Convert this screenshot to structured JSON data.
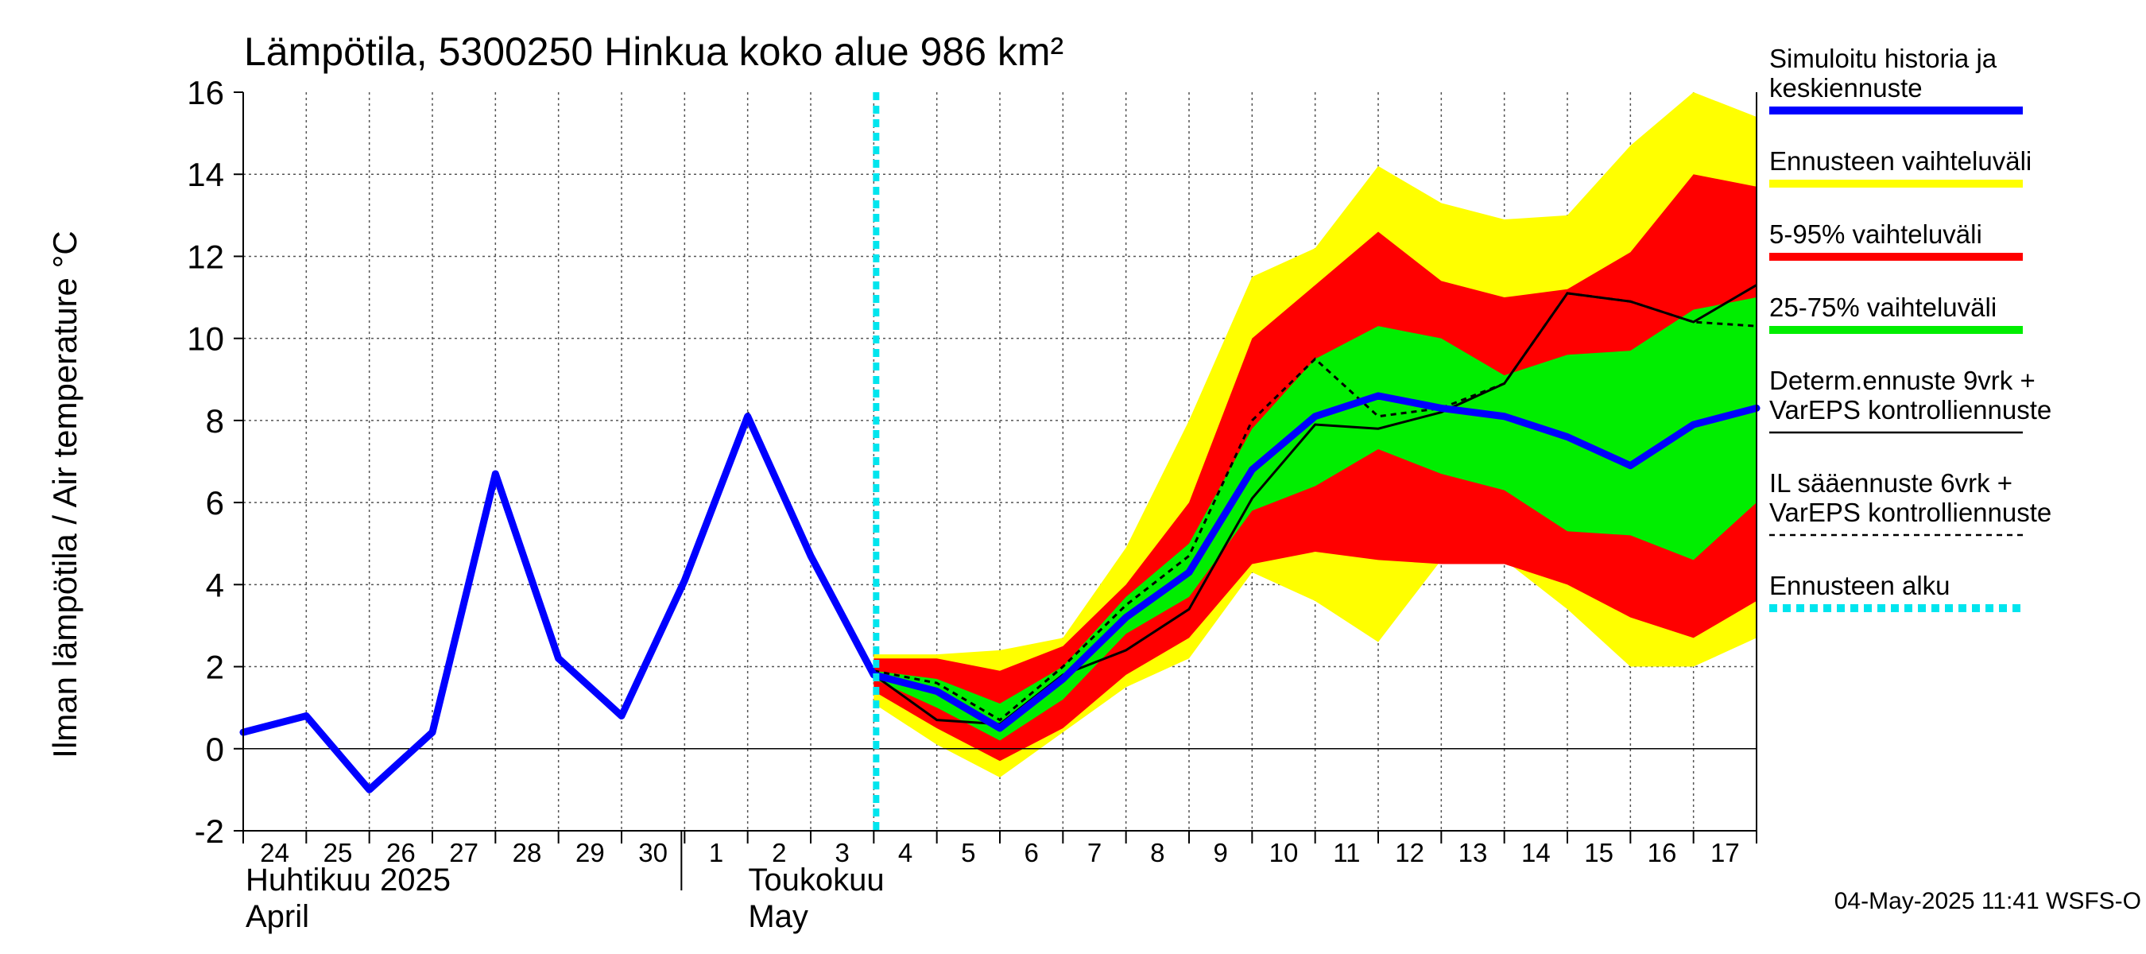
{
  "chart_data": {
    "type": "line",
    "title": "Lämpötila, 5300250 Hinkua koko alue 986 km²",
    "ylabel": "Ilman lämpötila / Air temperature   °C",
    "ylim": [
      -2,
      16
    ],
    "yticks": [
      -2,
      0,
      2,
      4,
      6,
      8,
      10,
      12,
      14,
      16
    ],
    "xlim": [
      "2025-04-24",
      "2025-05-18"
    ],
    "x_tick_labels": [
      "24",
      "25",
      "26",
      "27",
      "28",
      "29",
      "30",
      "1",
      "2",
      "3",
      "4",
      "5",
      "6",
      "7",
      "8",
      "9",
      "10",
      "11",
      "12",
      "13",
      "14",
      "15",
      "16",
      "17"
    ],
    "month_labels": [
      {
        "fi": "Huhtikuu  2025",
        "en": "April",
        "start": "2025-04-24"
      },
      {
        "fi": "Toukokuu",
        "en": "May",
        "start": "2025-05-01"
      }
    ],
    "grid": true,
    "legend_position": "right",
    "forecast_start": "2025-05-04",
    "footer": "04-May-2025 11:41 WSFS-O",
    "colors": {
      "history": "#0000ff",
      "range_full": "#ffff00",
      "range_5_95": "#ff0000",
      "range_25_75": "#00ee00",
      "determ": "#000000",
      "il": "#000000",
      "forecast_start": "#00e5ee"
    },
    "legend": [
      {
        "key": "history",
        "lines": [
          "Simuloitu historia ja",
          "keskiennuste"
        ],
        "style": "thick"
      },
      {
        "key": "range_full",
        "lines": [
          "Ennusteen vaihteluväli"
        ],
        "style": "thick"
      },
      {
        "key": "range_5_95",
        "lines": [
          "5-95% vaihteluväli"
        ],
        "style": "thick"
      },
      {
        "key": "range_25_75",
        "lines": [
          "25-75% vaihteluväli"
        ],
        "style": "thick"
      },
      {
        "key": "determ",
        "lines": [
          "Determ.ennuste 9vrk +",
          "VarEPS kontrolliennuste"
        ],
        "style": "thin"
      },
      {
        "key": "il",
        "lines": [
          "IL sääennuste 6vrk  +",
          "  VarEPS kontrolliennuste"
        ],
        "style": "dashed"
      },
      {
        "key": "forecast_start",
        "lines": [
          "Ennusteen alku"
        ],
        "style": "dotted"
      }
    ],
    "series": [
      {
        "key": "history",
        "name": "Simuloitu historia ja keskiennuste",
        "x": [
          "2025-04-24",
          "2025-04-25",
          "2025-04-26",
          "2025-04-27",
          "2025-04-28",
          "2025-04-29",
          "2025-04-30",
          "2025-05-01",
          "2025-05-02",
          "2025-05-03",
          "2025-05-04",
          "2025-05-05",
          "2025-05-06",
          "2025-05-07",
          "2025-05-08",
          "2025-05-09",
          "2025-05-10",
          "2025-05-11",
          "2025-05-12",
          "2025-05-13",
          "2025-05-14",
          "2025-05-15",
          "2025-05-16",
          "2025-05-17",
          "2025-05-18"
        ],
        "values": [
          0.4,
          0.8,
          -1.0,
          0.4,
          6.7,
          2.2,
          0.8,
          4.1,
          8.1,
          4.7,
          1.8,
          1.4,
          0.5,
          1.7,
          3.2,
          4.3,
          6.8,
          8.1,
          8.6,
          8.3,
          8.1,
          7.6,
          6.9,
          7.9,
          8.3
        ]
      },
      {
        "key": "determ",
        "name": "Determ.ennuste 9vrk + VarEPS kontrolliennuste",
        "x": [
          "2025-05-02",
          "2025-05-03",
          "2025-05-04",
          "2025-05-05",
          "2025-05-06",
          "2025-05-07",
          "2025-05-08",
          "2025-05-09",
          "2025-05-10",
          "2025-05-11",
          "2025-05-12",
          "2025-05-13",
          "2025-05-14",
          "2025-05-15",
          "2025-05-16",
          "2025-05-17",
          "2025-05-18"
        ],
        "values": [
          8.2,
          4.7,
          1.8,
          0.7,
          0.6,
          1.8,
          2.4,
          3.4,
          6.1,
          7.9,
          7.8,
          8.2,
          8.9,
          11.1,
          10.9,
          10.4,
          11.3
        ]
      },
      {
        "key": "il",
        "name": "IL sääennuste 6vrk + VarEPS kontrolliennuste",
        "x": [
          "2025-05-04",
          "2025-05-05",
          "2025-05-06",
          "2025-05-07",
          "2025-05-08",
          "2025-05-09",
          "2025-05-10",
          "2025-05-11",
          "2025-05-12",
          "2025-05-13",
          "2025-05-14",
          "2025-05-15",
          "2025-05-16",
          "2025-05-17",
          "2025-05-18"
        ],
        "values": [
          1.9,
          1.6,
          0.7,
          2.0,
          3.5,
          4.7,
          8.0,
          9.5,
          8.1,
          8.3,
          8.9,
          11.1,
          10.9,
          10.4,
          10.3
        ]
      }
    ],
    "bands": [
      {
        "key": "range_full",
        "name": "Ennusteen vaihteluväli",
        "x": [
          "2025-05-04",
          "2025-05-05",
          "2025-05-06",
          "2025-05-07",
          "2025-05-08",
          "2025-05-09",
          "2025-05-10",
          "2025-05-11",
          "2025-05-12",
          "2025-05-13",
          "2025-05-14",
          "2025-05-15",
          "2025-05-16",
          "2025-05-17",
          "2025-05-18"
        ],
        "upper": [
          2.3,
          2.3,
          2.4,
          2.7,
          4.9,
          8.0,
          11.5,
          12.2,
          14.2,
          13.3,
          12.9,
          13.0,
          14.7,
          16.0,
          15.4
        ],
        "lower": [
          1.1,
          0.1,
          -0.7,
          0.4,
          1.5,
          2.2,
          4.3,
          3.6,
          2.6,
          4.6,
          4.6,
          3.4,
          2.0,
          2.0,
          2.7
        ]
      },
      {
        "key": "range_5_95",
        "name": "5-95% vaihteluväli",
        "x": [
          "2025-05-04",
          "2025-05-05",
          "2025-05-06",
          "2025-05-07",
          "2025-05-08",
          "2025-05-09",
          "2025-05-10",
          "2025-05-11",
          "2025-05-12",
          "2025-05-13",
          "2025-05-14",
          "2025-05-15",
          "2025-05-16",
          "2025-05-17",
          "2025-05-18"
        ],
        "upper": [
          2.2,
          2.2,
          1.9,
          2.5,
          4.0,
          6.0,
          10.0,
          11.3,
          12.6,
          11.4,
          11.0,
          11.2,
          12.1,
          14.0,
          13.7
        ],
        "lower": [
          1.4,
          0.5,
          -0.3,
          0.5,
          1.8,
          2.7,
          4.5,
          4.8,
          4.6,
          4.5,
          4.5,
          4.0,
          3.2,
          2.7,
          3.6
        ]
      },
      {
        "key": "range_25_75",
        "name": "25-75% vaihteluväli",
        "x": [
          "2025-05-04",
          "2025-05-05",
          "2025-05-06",
          "2025-05-07",
          "2025-05-08",
          "2025-05-09",
          "2025-05-10",
          "2025-05-11",
          "2025-05-12",
          "2025-05-13",
          "2025-05-14",
          "2025-05-15",
          "2025-05-16",
          "2025-05-17",
          "2025-05-18"
        ],
        "upper": [
          1.9,
          1.7,
          1.1,
          2.0,
          3.7,
          5.0,
          7.8,
          9.5,
          10.3,
          10.0,
          9.1,
          9.6,
          9.7,
          10.7,
          11.0
        ],
        "lower": [
          1.7,
          1.0,
          0.2,
          1.2,
          2.8,
          3.7,
          5.8,
          6.4,
          7.3,
          6.7,
          6.3,
          5.3,
          5.2,
          4.6,
          6.0
        ]
      }
    ]
  }
}
